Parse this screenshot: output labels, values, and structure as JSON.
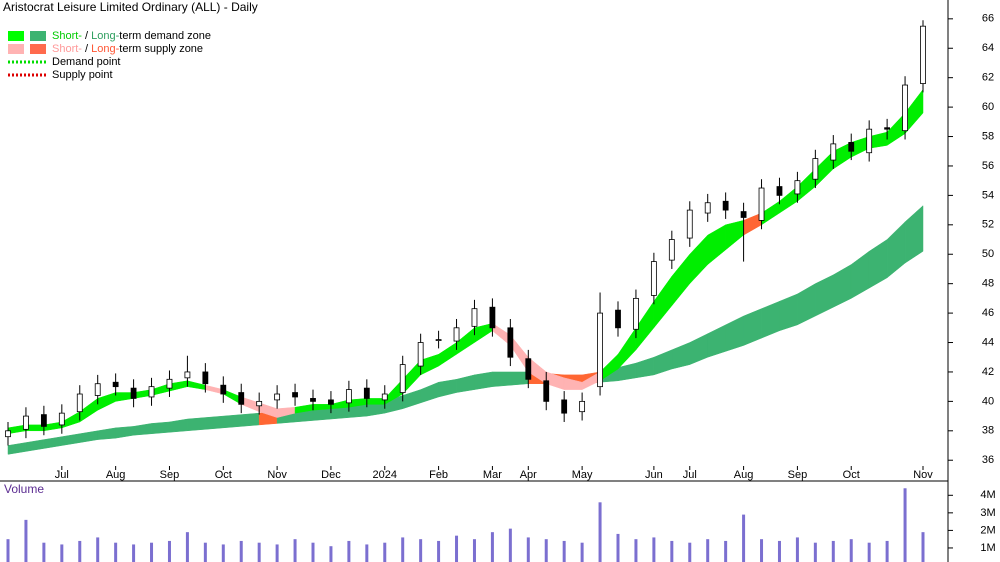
{
  "chart_data": [
    {
      "type": "candlestick",
      "title": "Aristocrat Leisure Limited Ordinary (ALL) - Daily",
      "categories": [
        null,
        null,
        null,
        "Jul",
        null,
        null,
        "Aug",
        null,
        null,
        "Sep",
        null,
        null,
        "Oct",
        null,
        null,
        "Nov",
        null,
        null,
        "Dec",
        null,
        null,
        "2024",
        null,
        null,
        "Feb",
        null,
        null,
        "Mar",
        null,
        "Apr",
        null,
        null,
        "May",
        null,
        null,
        null,
        "Jun",
        null,
        "Jul",
        null,
        null,
        "Aug",
        null,
        null,
        "Sep",
        null,
        null,
        "Oct",
        null,
        null,
        null,
        "Nov"
      ],
      "open": [
        37.6,
        38.1,
        39.1,
        38.4,
        39.3,
        40.4,
        41.3,
        40.9,
        40.3,
        40.9,
        41.6,
        42.0,
        41.1,
        40.6,
        39.7,
        40.1,
        40.6,
        40.2,
        40.1,
        39.9,
        40.9,
        40.1,
        40.6,
        42.4,
        44.2,
        44.1,
        45.1,
        46.4,
        45.0,
        42.9,
        41.4,
        40.1,
        39.3,
        41.0,
        46.2,
        44.9,
        47.2,
        49.6,
        51.1,
        52.8,
        53.6,
        52.9,
        52.3,
        54.6,
        54.1,
        55.1,
        56.4,
        57.6,
        56.9,
        58.6,
        58.4,
        61.6
      ],
      "high": [
        38.6,
        39.6,
        39.7,
        39.8,
        41.1,
        41.8,
        41.9,
        41.5,
        41.6,
        42.1,
        43.1,
        42.6,
        41.7,
        41.2,
        40.6,
        41.1,
        41.2,
        40.8,
        40.7,
        41.4,
        41.5,
        41.1,
        43.1,
        44.6,
        44.8,
        45.6,
        46.9,
        47.0,
        45.6,
        43.5,
        42.0,
        40.7,
        40.6,
        47.4,
        46.8,
        47.6,
        50.1,
        51.6,
        53.6,
        54.1,
        54.2,
        53.5,
        55.1,
        55.2,
        55.6,
        57.1,
        58.1,
        58.2,
        59.1,
        59.2,
        62.1,
        65.9
      ],
      "low": [
        37.0,
        37.5,
        37.7,
        37.8,
        38.7,
        39.8,
        40.4,
        39.6,
        39.7,
        40.3,
        41.0,
        40.6,
        39.9,
        39.2,
        39.1,
        39.5,
        39.7,
        39.4,
        39.2,
        39.3,
        39.6,
        39.5,
        40.0,
        41.8,
        43.6,
        43.5,
        44.5,
        44.4,
        42.4,
        40.9,
        39.4,
        38.6,
        38.7,
        40.4,
        44.4,
        44.3,
        46.6,
        49.0,
        50.5,
        52.2,
        52.4,
        49.5,
        51.7,
        53.4,
        53.5,
        54.5,
        55.8,
        56.4,
        56.3,
        57.8,
        57.8,
        61.0
      ],
      "close": [
        38.0,
        39.0,
        38.3,
        39.2,
        40.5,
        41.2,
        41.0,
        40.2,
        41.0,
        41.5,
        42.0,
        41.2,
        40.5,
        39.8,
        40.0,
        40.5,
        40.3,
        40.0,
        39.8,
        40.8,
        40.2,
        40.5,
        42.5,
        44.0,
        44.2,
        45.0,
        46.3,
        45.0,
        43.0,
        41.5,
        40.0,
        39.2,
        40.0,
        46.0,
        45.0,
        47.0,
        49.5,
        51.0,
        53.0,
        53.5,
        53.0,
        52.5,
        54.5,
        54.0,
        55.0,
        56.5,
        57.5,
        57.0,
        58.5,
        58.5,
        61.5,
        65.5
      ],
      "up_color": "#ffffff",
      "down_color": "#000000",
      "short_zone": {
        "upper": [
          38.2,
          38.4,
          38.4,
          38.6,
          39.3,
          40.2,
          40.6,
          40.6,
          40.8,
          41.2,
          41.4,
          41.1,
          40.8,
          40.3,
          39.9,
          39.5,
          39.6,
          39.8,
          39.8,
          40.1,
          40.2,
          40.2,
          41.5,
          42.8,
          43.2,
          44.0,
          45.0,
          45.3,
          44.5,
          43.0,
          42.0,
          41.6,
          41.3,
          42.0,
          43.2,
          45.0,
          46.8,
          48.5,
          50.0,
          51.3,
          52.0,
          52.3,
          52.8,
          53.6,
          54.6,
          55.8,
          57.0,
          57.6,
          58.0,
          58.3,
          59.6,
          61.2
        ],
        "lower": [
          37.8,
          38.0,
          38.0,
          38.2,
          38.6,
          39.4,
          40.0,
          40.2,
          40.4,
          40.7,
          41.0,
          40.8,
          40.5,
          39.8,
          39.3,
          38.9,
          39.2,
          39.4,
          39.5,
          39.6,
          39.8,
          39.8,
          40.5,
          41.8,
          42.4,
          43.2,
          44.0,
          44.8,
          43.8,
          42.0,
          41.2,
          40.8,
          40.8,
          41.4,
          42.2,
          43.5,
          45.0,
          46.5,
          48.0,
          49.3,
          50.3,
          51.3,
          52.0,
          52.8,
          53.6,
          54.6,
          55.8,
          56.6,
          57.2,
          57.4,
          58.2,
          59.6
        ],
        "colors": [
          "#00ee00",
          "#00ee00",
          "#00ee00",
          "#00ee00",
          "#00ee00",
          "#00ee00",
          "#00ee00",
          "#00ee00",
          "#00ee00",
          "#00ee00",
          "#00ee00",
          "#ffb3b3",
          "#00ee00",
          "#ffb3b3",
          "#ffb3b3",
          "#ffb3b3",
          "#00ee00",
          "#00ee00",
          "#00ee00",
          "#00ee00",
          "#00ee00",
          "#00ee00",
          "#00ee00",
          "#00ee00",
          "#00ee00",
          "#00ee00",
          "#00ee00",
          "#ffb3b3",
          "#ffb3b3",
          "#ffb3b3",
          "#ffb3b3",
          "#ffb3b3",
          "#ffb3b3",
          "#00ee00",
          "#00ee00",
          "#00ee00",
          "#00ee00",
          "#00ee00",
          "#00ee00",
          "#00ee00",
          "#00ee00",
          "#ff6633",
          "#00ee00",
          "#00ee00",
          "#00ee00",
          "#00ee00",
          "#00ee00",
          "#00ee00",
          "#00ee00",
          "#00ee00",
          "#00ee00",
          "#00ee00"
        ]
      },
      "long_zone": {
        "upper": [
          37.0,
          37.2,
          37.4,
          37.6,
          37.8,
          38.0,
          38.2,
          38.3,
          38.5,
          38.6,
          38.8,
          38.9,
          39.0,
          39.1,
          39.2,
          39.3,
          39.4,
          39.4,
          39.5,
          39.7,
          39.8,
          40.0,
          40.4,
          40.8,
          41.3,
          41.5,
          41.8,
          42.0,
          42.0,
          42.0,
          41.9,
          41.8,
          41.8,
          42.0,
          42.3,
          42.6,
          43.0,
          43.5,
          44.0,
          44.6,
          45.2,
          45.8,
          46.3,
          46.8,
          47.3,
          48.0,
          48.6,
          49.3,
          50.2,
          51.0,
          52.2,
          53.3
        ],
        "lower": [
          36.4,
          36.6,
          36.8,
          37.0,
          37.2,
          37.4,
          37.5,
          37.7,
          37.8,
          37.9,
          38.0,
          38.1,
          38.2,
          38.3,
          38.4,
          38.5,
          38.6,
          38.7,
          38.8,
          38.9,
          39.0,
          39.2,
          39.5,
          39.9,
          40.3,
          40.6,
          40.8,
          41.0,
          41.1,
          41.2,
          41.2,
          41.2,
          41.2,
          41.3,
          41.4,
          41.6,
          41.8,
          42.2,
          42.5,
          43.0,
          43.4,
          43.8,
          44.3,
          44.8,
          45.2,
          45.8,
          46.4,
          47.0,
          47.7,
          48.4,
          49.4,
          50.2
        ],
        "colors": [
          "#3cb371",
          "#3cb371",
          "#3cb371",
          "#3cb371",
          "#3cb371",
          "#3cb371",
          "#3cb371",
          "#3cb371",
          "#3cb371",
          "#3cb371",
          "#3cb371",
          "#3cb371",
          "#3cb371",
          "#3cb371",
          "#ff6633",
          "#3cb371",
          "#3cb371",
          "#3cb371",
          "#3cb371",
          "#3cb371",
          "#3cb371",
          "#3cb371",
          "#3cb371",
          "#3cb371",
          "#3cb371",
          "#3cb371",
          "#3cb371",
          "#3cb371",
          "#3cb371",
          "#ff6633",
          "#ff6633",
          "#ff6633",
          "#ff6633",
          "#3cb371",
          "#3cb371",
          "#3cb371",
          "#3cb371",
          "#3cb371",
          "#3cb371",
          "#3cb371",
          "#3cb371",
          "#3cb371",
          "#3cb371",
          "#3cb371",
          "#3cb371",
          "#3cb371",
          "#3cb371",
          "#3cb371",
          "#3cb371",
          "#3cb371",
          "#3cb371",
          "#3cb371"
        ]
      },
      "legend": [
        {
          "parts": [
            "Short-",
            " / ",
            "Long-",
            "term demand zone"
          ],
          "part_colors": [
            "#00cc00",
            "#000000",
            "#2e9e5e",
            "#000000"
          ],
          "swatches": [
            "#00ff00",
            "#3cb371"
          ]
        },
        {
          "parts": [
            "Short-",
            " / ",
            "Long-",
            "term supply zone"
          ],
          "part_colors": [
            "#ff9a9a",
            "#000000",
            "#ff5533",
            "#000000"
          ],
          "swatches": [
            "#ffb3b3",
            "#ff6a4d"
          ]
        },
        {
          "label": "Demand point",
          "dotted": "#00dd00"
        },
        {
          "label": "Supply point",
          "dotted": "#dd0000"
        }
      ],
      "ylim": [
        35.2,
        66.6
      ],
      "yticks": [
        36,
        38,
        40,
        42,
        44,
        46,
        48,
        50,
        52,
        54,
        56,
        58,
        60,
        62,
        64,
        66
      ]
    },
    {
      "type": "bar",
      "title": "Volume",
      "values": [
        1.5,
        2.6,
        1.3,
        1.2,
        1.4,
        1.6,
        1.3,
        1.2,
        1.3,
        1.4,
        1.9,
        1.3,
        1.2,
        1.4,
        1.3,
        1.2,
        1.5,
        1.3,
        1.1,
        1.4,
        1.2,
        1.3,
        1.6,
        1.5,
        1.4,
        1.7,
        1.5,
        1.9,
        2.1,
        1.6,
        1.5,
        1.4,
        1.3,
        3.6,
        1.8,
        1.5,
        1.6,
        1.4,
        1.3,
        1.5,
        1.4,
        2.9,
        1.5,
        1.4,
        1.6,
        1.3,
        1.4,
        1.5,
        1.3,
        1.4,
        4.4,
        1.9
      ],
      "color": "#7b6fd0",
      "ylim": [
        0.2,
        4.7
      ],
      "yticks": [
        {
          "value": 1,
          "label": "1M"
        },
        {
          "value": 2,
          "label": "2M"
        },
        {
          "value": 3,
          "label": "3M"
        },
        {
          "value": 4,
          "label": "4M"
        }
      ]
    }
  ]
}
